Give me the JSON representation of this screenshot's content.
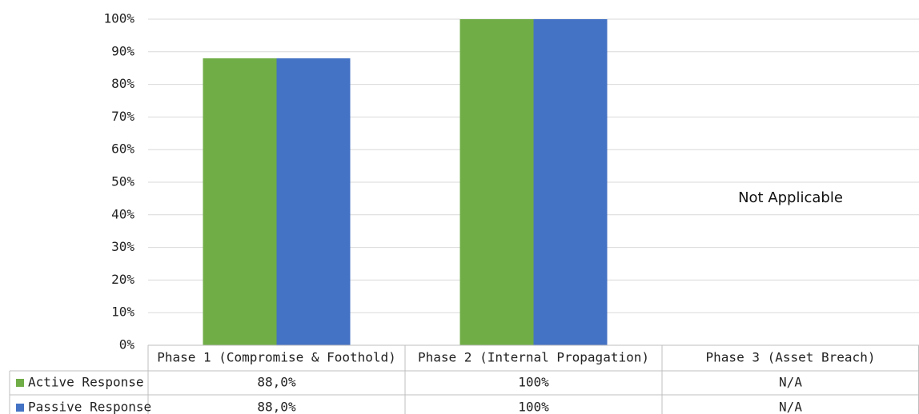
{
  "chart_data": {
    "type": "bar",
    "categories": [
      "Phase 1 (Compromise & Foothold)",
      "Phase 2 (Internal Propagation)",
      "Phase 3 (Asset Breach)"
    ],
    "series": [
      {
        "name": "Active Response",
        "values": [
          88,
          100,
          null
        ],
        "color": "#70AD47",
        "cells": [
          "88,0%",
          "100%",
          "N/A"
        ]
      },
      {
        "name": "Passive Response",
        "values": [
          88,
          100,
          null
        ],
        "color": "#4472C4",
        "cells": [
          "88,0%",
          "100%",
          "N/A"
        ]
      }
    ],
    "y_ticks": [
      "0%",
      "10%",
      "20%",
      "30%",
      "40%",
      "50%",
      "60%",
      "70%",
      "80%",
      "90%",
      "100%"
    ],
    "ylim": [
      0,
      100
    ],
    "grid": true,
    "legend": "data table",
    "annotations": [
      {
        "category": "Phase 3 (Asset Breach)",
        "text": "Not Applicable"
      }
    ]
  }
}
